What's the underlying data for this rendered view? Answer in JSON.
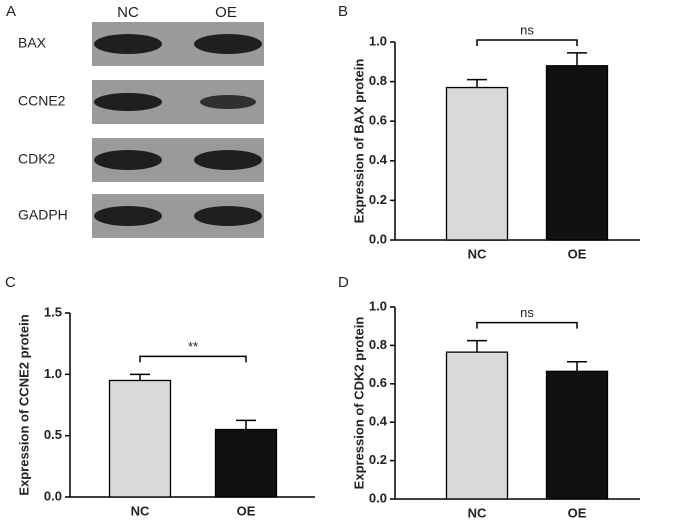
{
  "blot": {
    "panel_label": "A",
    "columns": [
      "NC",
      "OE"
    ],
    "rows": [
      "BAX",
      "CCNE2",
      "CDK2",
      "GADPH"
    ]
  },
  "chart_data": [
    {
      "type": "bar",
      "panel_label": "B",
      "y_label": "Expression of BAX protein",
      "categories": [
        "NC",
        "OE"
      ],
      "values": [
        0.77,
        0.88
      ],
      "errors": [
        0.04,
        0.065
      ],
      "colors": [
        "#d9d9d9",
        "#111111"
      ],
      "annotation": "ns",
      "ylim": [
        0,
        1.0
      ],
      "yticks": [
        {
          "value": 0,
          "label": "0.0"
        },
        0.2,
        0.4,
        0.6,
        0.8,
        {
          "value": 1,
          "label": "1.0"
        }
      ]
    },
    {
      "type": "bar",
      "panel_label": "C",
      "y_label": "Expression of CCNE2 protein",
      "categories": [
        "NC",
        "OE"
      ],
      "values": [
        0.95,
        0.55
      ],
      "errors": [
        0.05,
        0.075
      ],
      "colors": [
        "#d9d9d9",
        "#111111"
      ],
      "annotation": "**",
      "ylim": [
        0,
        1.5
      ],
      "yticks": [
        {
          "value": 0,
          "label": "0.0"
        },
        0.5,
        {
          "value": 1,
          "label": "1.0"
        },
        1.5
      ]
    },
    {
      "type": "bar",
      "panel_label": "D",
      "y_label": "Expression of CDK2 protein",
      "categories": [
        "NC",
        "OE"
      ],
      "values": [
        0.765,
        0.665
      ],
      "errors": [
        0.06,
        0.05
      ],
      "colors": [
        "#d9d9d9",
        "#111111"
      ],
      "annotation": "ns",
      "ylim": [
        0,
        1.0
      ],
      "yticks": [
        {
          "value": 0,
          "label": "0.0"
        },
        0.2,
        0.4,
        0.6,
        0.8,
        {
          "value": 1,
          "label": "1.0"
        }
      ]
    }
  ]
}
